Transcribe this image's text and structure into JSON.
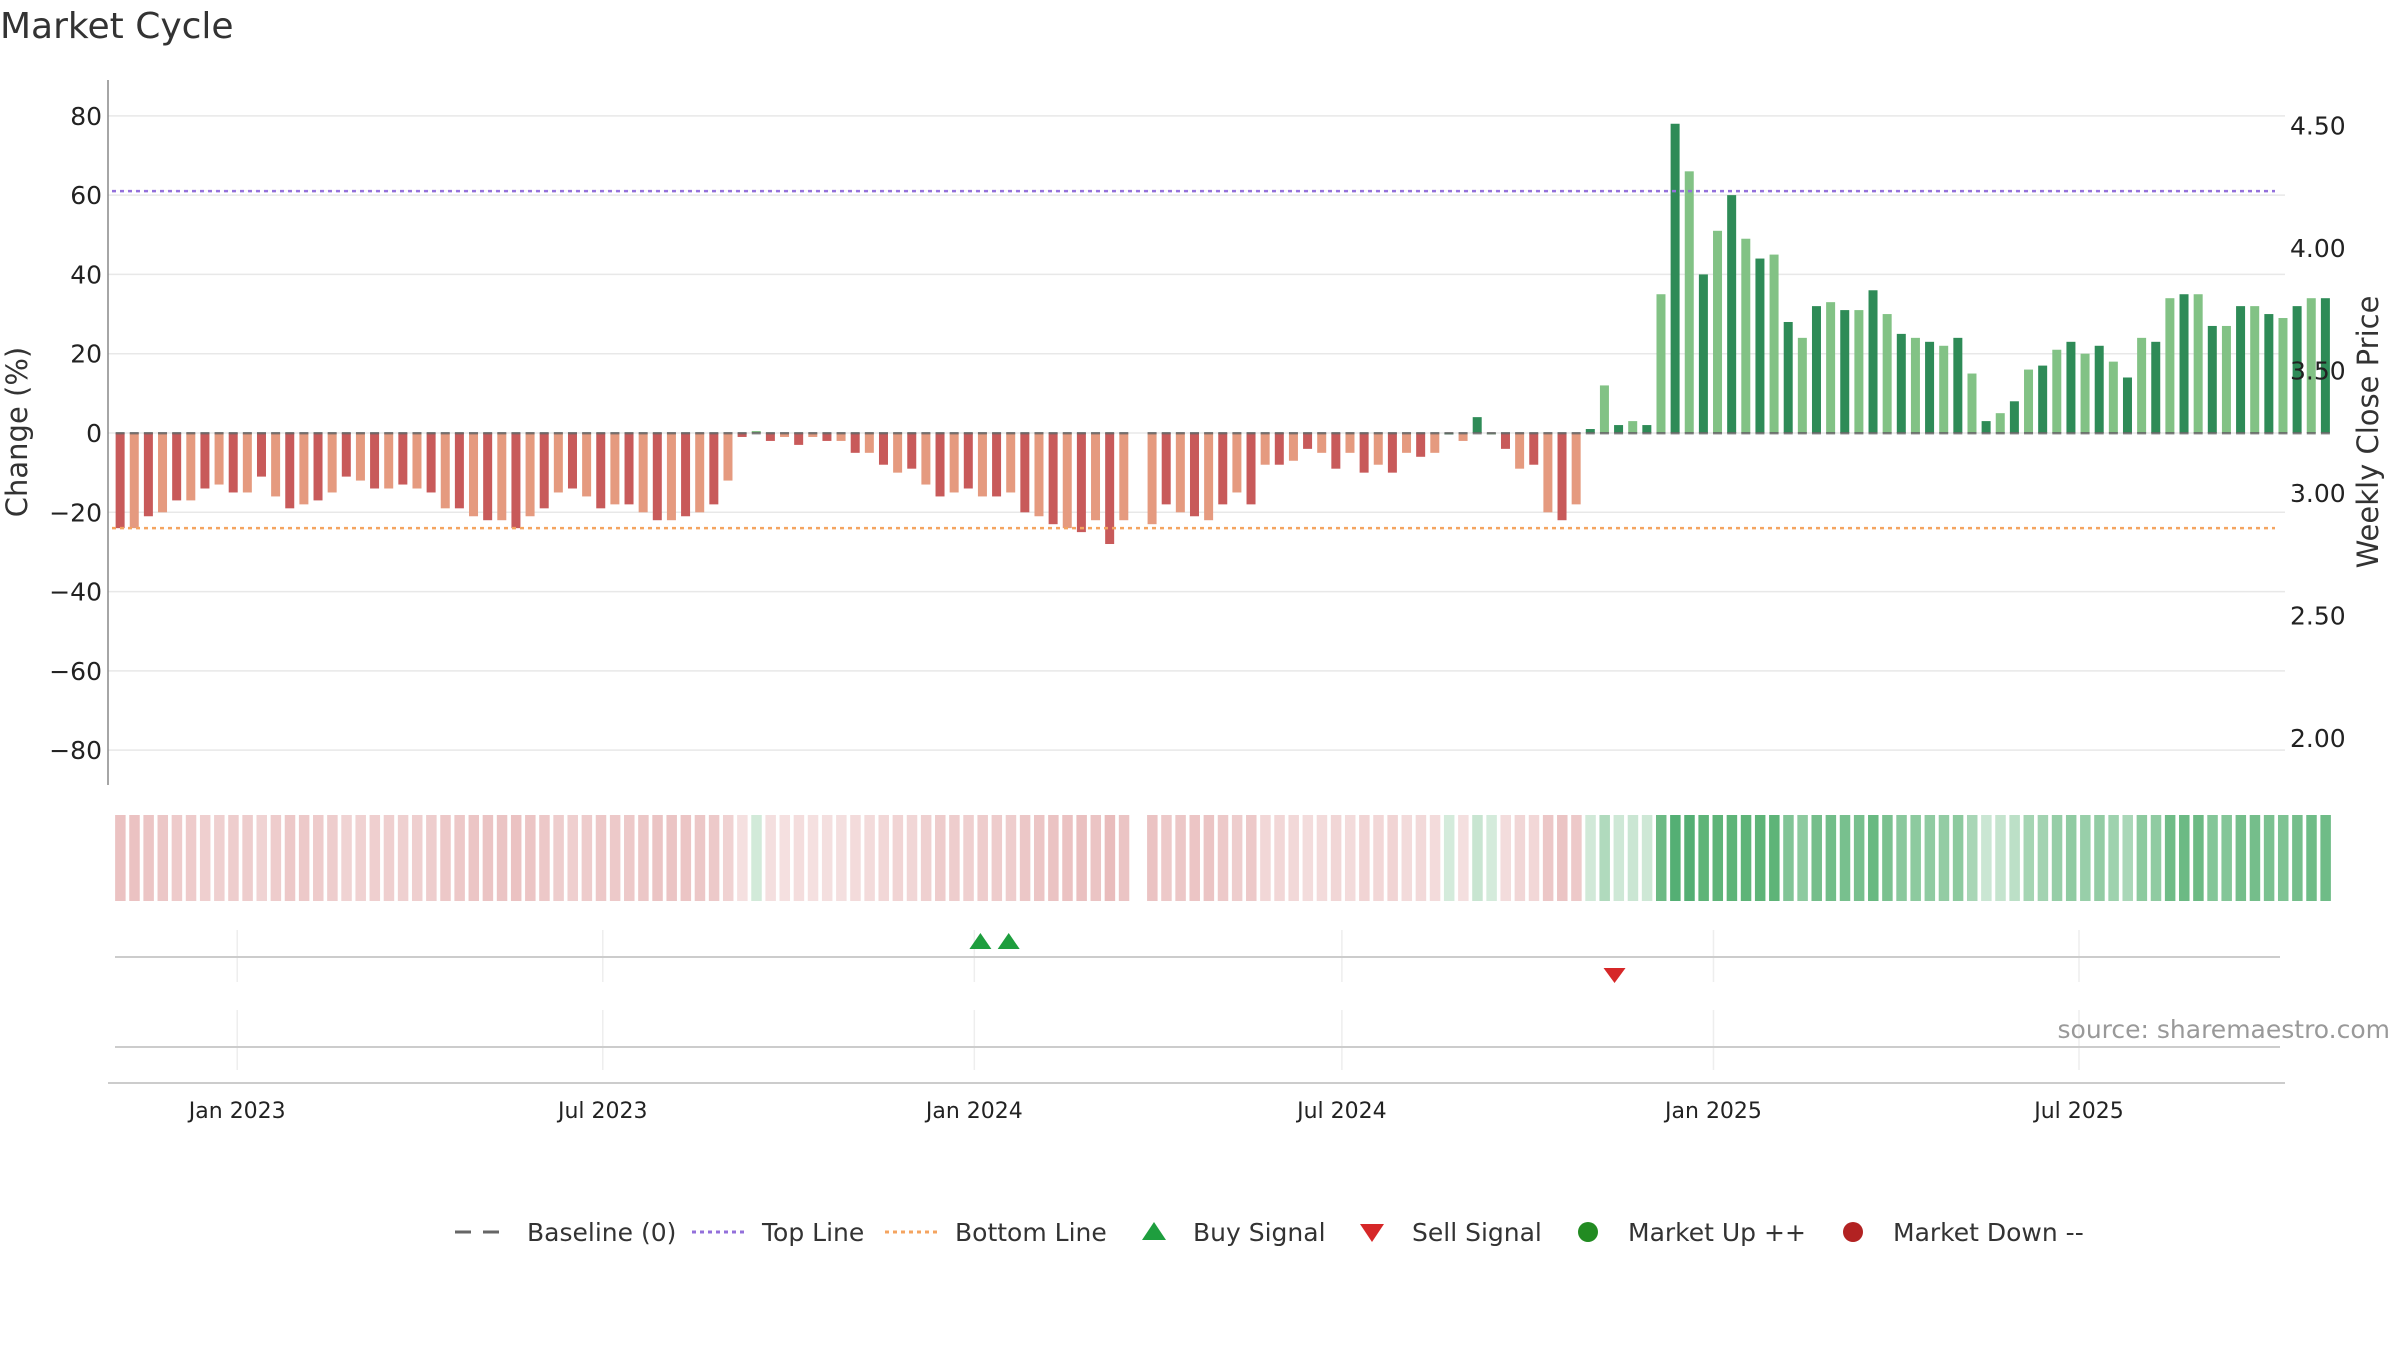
{
  "chart_data": {
    "type": "bar",
    "title": "Market Cycle",
    "ylabel": "Change (%)",
    "y2label": "Weekly Close Price",
    "ylim": [
      -85,
      85
    ],
    "y_ticks": [
      "80",
      "60",
      "40",
      "20",
      "0",
      "−20",
      "−40",
      "−60",
      "−80"
    ],
    "y_tick_values": [
      80,
      60,
      40,
      20,
      0,
      -20,
      -40,
      -60,
      -80
    ],
    "y2_ticks": [
      "4.50",
      "4.00",
      "3.50",
      "3.00",
      "2.50",
      "2.00"
    ],
    "y2_tick_values": [
      4.5,
      4.0,
      3.5,
      3.0,
      2.5,
      2.0
    ],
    "y2lim": [
      1.87,
      4.62
    ],
    "x_range": [
      "2022-10-29",
      "2025-10-11"
    ],
    "x_ticks": [
      "Jan 2023",
      "Jul 2023",
      "Jan 2024",
      "Jul 2024",
      "Jan 2025",
      "Jul 2025"
    ],
    "x_tick_dates": [
      "2023-01-01",
      "2023-07-01",
      "2024-01-01",
      "2024-07-01",
      "2025-01-01",
      "2025-07-01"
    ],
    "start_date": "2022-11-04",
    "top_line": 61,
    "bottom_line": -24,
    "values": [
      -24,
      -24,
      -21,
      -20,
      -17,
      -17,
      -14,
      -13,
      -15,
      -15,
      -11,
      -16,
      -19,
      -18,
      -17,
      -15,
      -11,
      -12,
      -14,
      -14,
      -13,
      -14,
      -15,
      -19,
      -19,
      -21,
      -22,
      -22,
      -24,
      -21,
      -19,
      -15,
      -14,
      -16,
      -19,
      -18,
      -18,
      -20,
      -22,
      -22,
      -21,
      -20,
      -18,
      -12,
      -1,
      0.5,
      -2,
      -1,
      -3,
      -1,
      -2,
      -2,
      -5,
      -5,
      -8,
      -10,
      -9,
      -13,
      -16,
      -15,
      -14,
      -16,
      -16,
      -15,
      -20,
      -21,
      -23,
      -24,
      -25,
      -22,
      -28,
      -22,
      null,
      -23,
      -18,
      -20,
      -21,
      -22,
      -18,
      -15,
      -18,
      -8,
      -8,
      -7,
      -4,
      -5,
      -9,
      -5,
      -10,
      -8,
      -10,
      -5,
      -6,
      -5,
      0,
      -2,
      4,
      0,
      -4,
      -9,
      -8,
      -20,
      -22,
      -18,
      1,
      12,
      2,
      3,
      2,
      35,
      78,
      66,
      40,
      51,
      60,
      49,
      44,
      45,
      28,
      24,
      32,
      33,
      31,
      31,
      36,
      30,
      25,
      24,
      23,
      22,
      24,
      15,
      3,
      5,
      8,
      16,
      17,
      21,
      23,
      20,
      22,
      18,
      14,
      24,
      23,
      34,
      35,
      35,
      27,
      27,
      32,
      32,
      30,
      29,
      32,
      34,
      34
    ],
    "buy_signals": [
      "2024-01-04",
      "2024-01-18"
    ],
    "sell_signals": [
      "2024-11-13"
    ],
    "legend": [
      "Baseline (0)",
      "Top Line",
      "Bottom Line",
      "Buy Signal",
      "Sell Signal",
      "Market Up ++",
      "Market Down --"
    ],
    "legend_position": "bottom",
    "grid": true,
    "colors": {
      "down_dark": "#c85a5a",
      "down_light": "#e59a7f",
      "up_dark": "#2e8b57",
      "up_light": "#82c285",
      "top_line": "#9370db",
      "bottom_line": "#f4a460",
      "baseline": "#666666",
      "buy": "#1e9e3e",
      "sell": "#d62728",
      "market_up": "#228b22",
      "market_down": "#b22222"
    }
  },
  "source": "source: sharemaestro.com"
}
